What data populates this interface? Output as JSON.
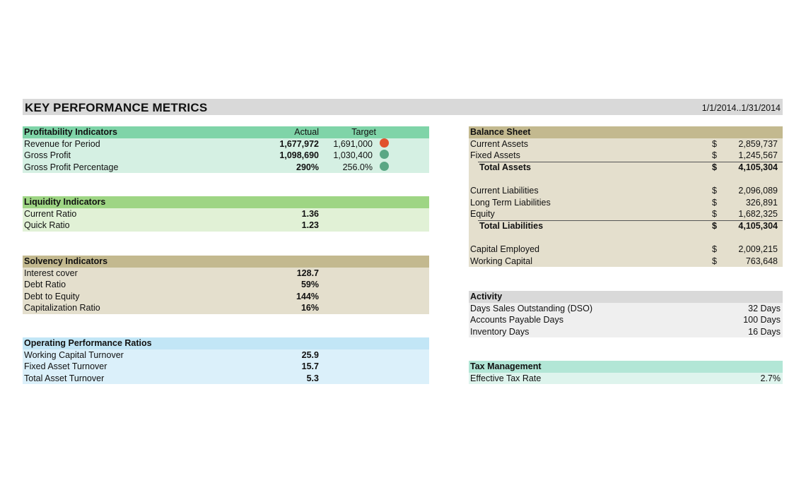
{
  "header": {
    "title": "KEY PERFORMANCE METRICS",
    "period": "1/1/2014..1/31/2014"
  },
  "colors": {
    "title_bg": "#d9d9d9",
    "profitability_header": "#7fd4a8",
    "profitability_body": "#d5f0e3",
    "liquidity_header": "#9ed584",
    "liquidity_body": "#e1f1d6",
    "solvency_header": "#c3b98f",
    "solvency_body": "#e4dfcd",
    "operating_header": "#c2e6f6",
    "operating_body": "#dbf0fa",
    "balance_header": "#c3b98f",
    "balance_body": "#e4dfcd",
    "activity_header": "#d9d9d9",
    "activity_body": "#efefef",
    "tax_header": "#b2e6d6",
    "tax_body": "#def4ed",
    "status_red": "#e1522e",
    "status_green": "#5aa784"
  },
  "profitability": {
    "title": "Profitability Indicators",
    "col_actual": "Actual",
    "col_target": "Target",
    "rows": [
      {
        "label": "Revenue for Period",
        "actual": "1,677,972",
        "target": "1,691,000",
        "status": "red"
      },
      {
        "label": "Gross Profit",
        "actual": "1,098,690",
        "target": "1,030,400",
        "status": "green"
      },
      {
        "label": "Gross Profit Percentage",
        "actual": "290%",
        "target": "256.0%",
        "status": "green"
      }
    ]
  },
  "liquidity": {
    "title": "Liquidity Indicators",
    "rows": [
      {
        "label": "Current Ratio",
        "value": "1.36"
      },
      {
        "label": "Quick Ratio",
        "value": "1.23"
      }
    ]
  },
  "solvency": {
    "title": "Solvency Indicators",
    "rows": [
      {
        "label": "Interest cover",
        "value": "128.7"
      },
      {
        "label": "Debt Ratio",
        "value": "59%"
      },
      {
        "label": "Debt to Equity",
        "value": "144%"
      },
      {
        "label": "Capitalization Ratio",
        "value": "16%"
      }
    ]
  },
  "operating": {
    "title": "Operating Performance Ratios",
    "rows": [
      {
        "label": "Working Capital Turnover",
        "value": "25.9"
      },
      {
        "label": "Fixed Asset Turnover",
        "value": "15.7"
      },
      {
        "label": "Total Asset Turnover",
        "value": "5.3"
      }
    ]
  },
  "balance_sheet": {
    "title": "Balance Sheet",
    "currency": "$",
    "current_assets": {
      "label": "Current Assets",
      "amount": "2,859,737"
    },
    "fixed_assets": {
      "label": "Fixed Assets",
      "amount": "1,245,567"
    },
    "total_assets": {
      "label": "Total Assets",
      "amount": "4,105,304"
    },
    "current_liabilities": {
      "label": "Current Liabilities",
      "amount": "2,096,089"
    },
    "long_term_liabilities": {
      "label": "Long Term Liabilities",
      "amount": "326,891"
    },
    "equity": {
      "label": "Equity",
      "amount": "1,682,325"
    },
    "total_liabilities": {
      "label": "Total Liabilities",
      "amount": "4,105,304"
    },
    "capital_employed": {
      "label": "Capital Employed",
      "amount": "2,009,215"
    },
    "working_capital": {
      "label": "Working Capital",
      "amount": "763,648"
    }
  },
  "activity": {
    "title": "Activity",
    "rows": [
      {
        "label": "Days Sales Outstanding (DSO)",
        "value": "32 Days"
      },
      {
        "label": "Accounts Payable Days",
        "value": "100 Days"
      },
      {
        "label": "Inventory Days",
        "value": "16 Days"
      }
    ]
  },
  "tax": {
    "title": "Tax Management",
    "rows": [
      {
        "label": "Effective Tax Rate",
        "value": "2.7%"
      }
    ]
  }
}
